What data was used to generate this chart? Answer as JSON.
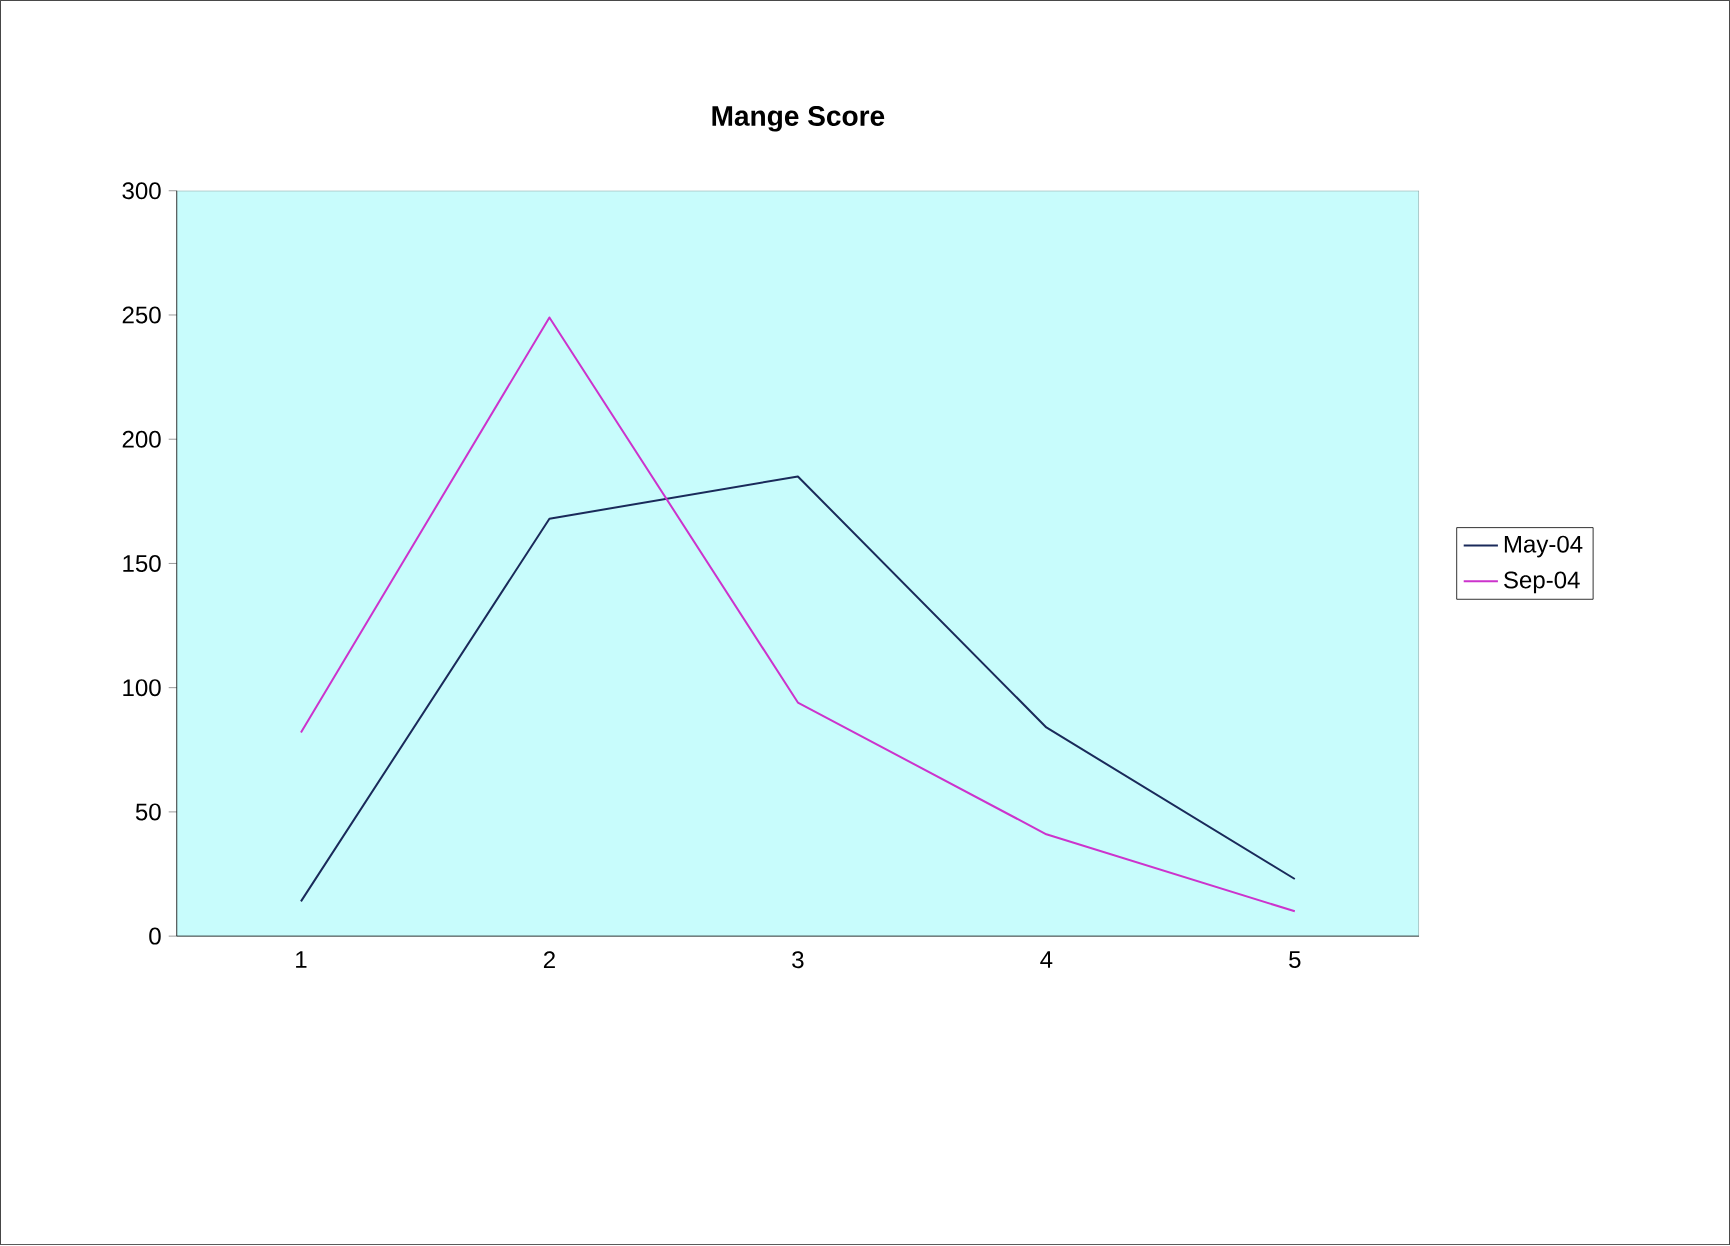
{
  "chart_data": {
    "type": "line",
    "title": "Mange Score",
    "categories": [
      "1",
      "2",
      "3",
      "4",
      "5"
    ],
    "series": [
      {
        "name": "May-04",
        "color": "#1a2a5a",
        "values": [
          14,
          168,
          185,
          84,
          23
        ]
      },
      {
        "name": "Sep-04",
        "color": "#cc33cc",
        "values": [
          82,
          249,
          94,
          41,
          10
        ]
      }
    ],
    "ylim": [
      0,
      300
    ],
    "yticks": [
      0,
      50,
      100,
      150,
      200,
      250,
      300
    ],
    "grid": false,
    "legend": "right",
    "marker": "none",
    "line_style": "solid"
  }
}
